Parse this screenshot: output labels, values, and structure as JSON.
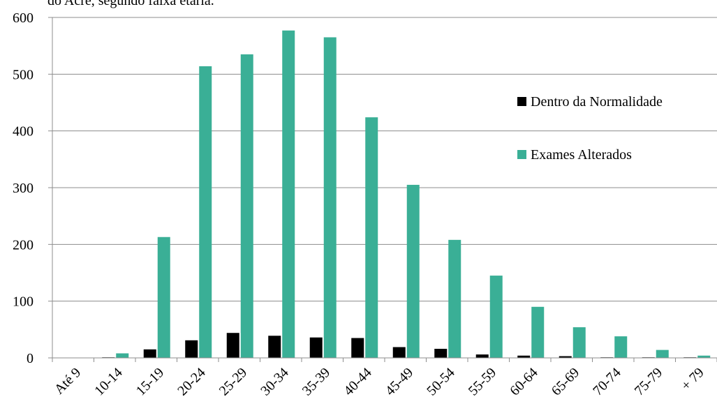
{
  "caption": "do Acre, segundo faixa etária.",
  "chart_data": {
    "type": "bar",
    "categories": [
      "Até 9",
      "10-14",
      "15-19",
      "20-24",
      "25-29",
      "30-34",
      "35-39",
      "40-44",
      "45-49",
      "50-54",
      "55-59",
      "60-64",
      "65-69",
      "70-74",
      "75-79",
      "+ 79"
    ],
    "series": [
      {
        "name": "Dentro da Normalidade",
        "color": "#000000",
        "values": [
          0,
          1,
          15,
          31,
          44,
          39,
          36,
          35,
          19,
          16,
          6,
          4,
          3,
          1,
          1,
          1
        ]
      },
      {
        "name": "Exames Alterados",
        "color": "#3aaf96",
        "values": [
          0,
          8,
          213,
          514,
          535,
          577,
          565,
          424,
          305,
          208,
          145,
          90,
          54,
          38,
          14,
          4
        ]
      }
    ],
    "ylim": [
      0,
      600
    ],
    "yticks": [
      0,
      100,
      200,
      300,
      400,
      500,
      600
    ],
    "grid": true,
    "legend_position": "right"
  }
}
